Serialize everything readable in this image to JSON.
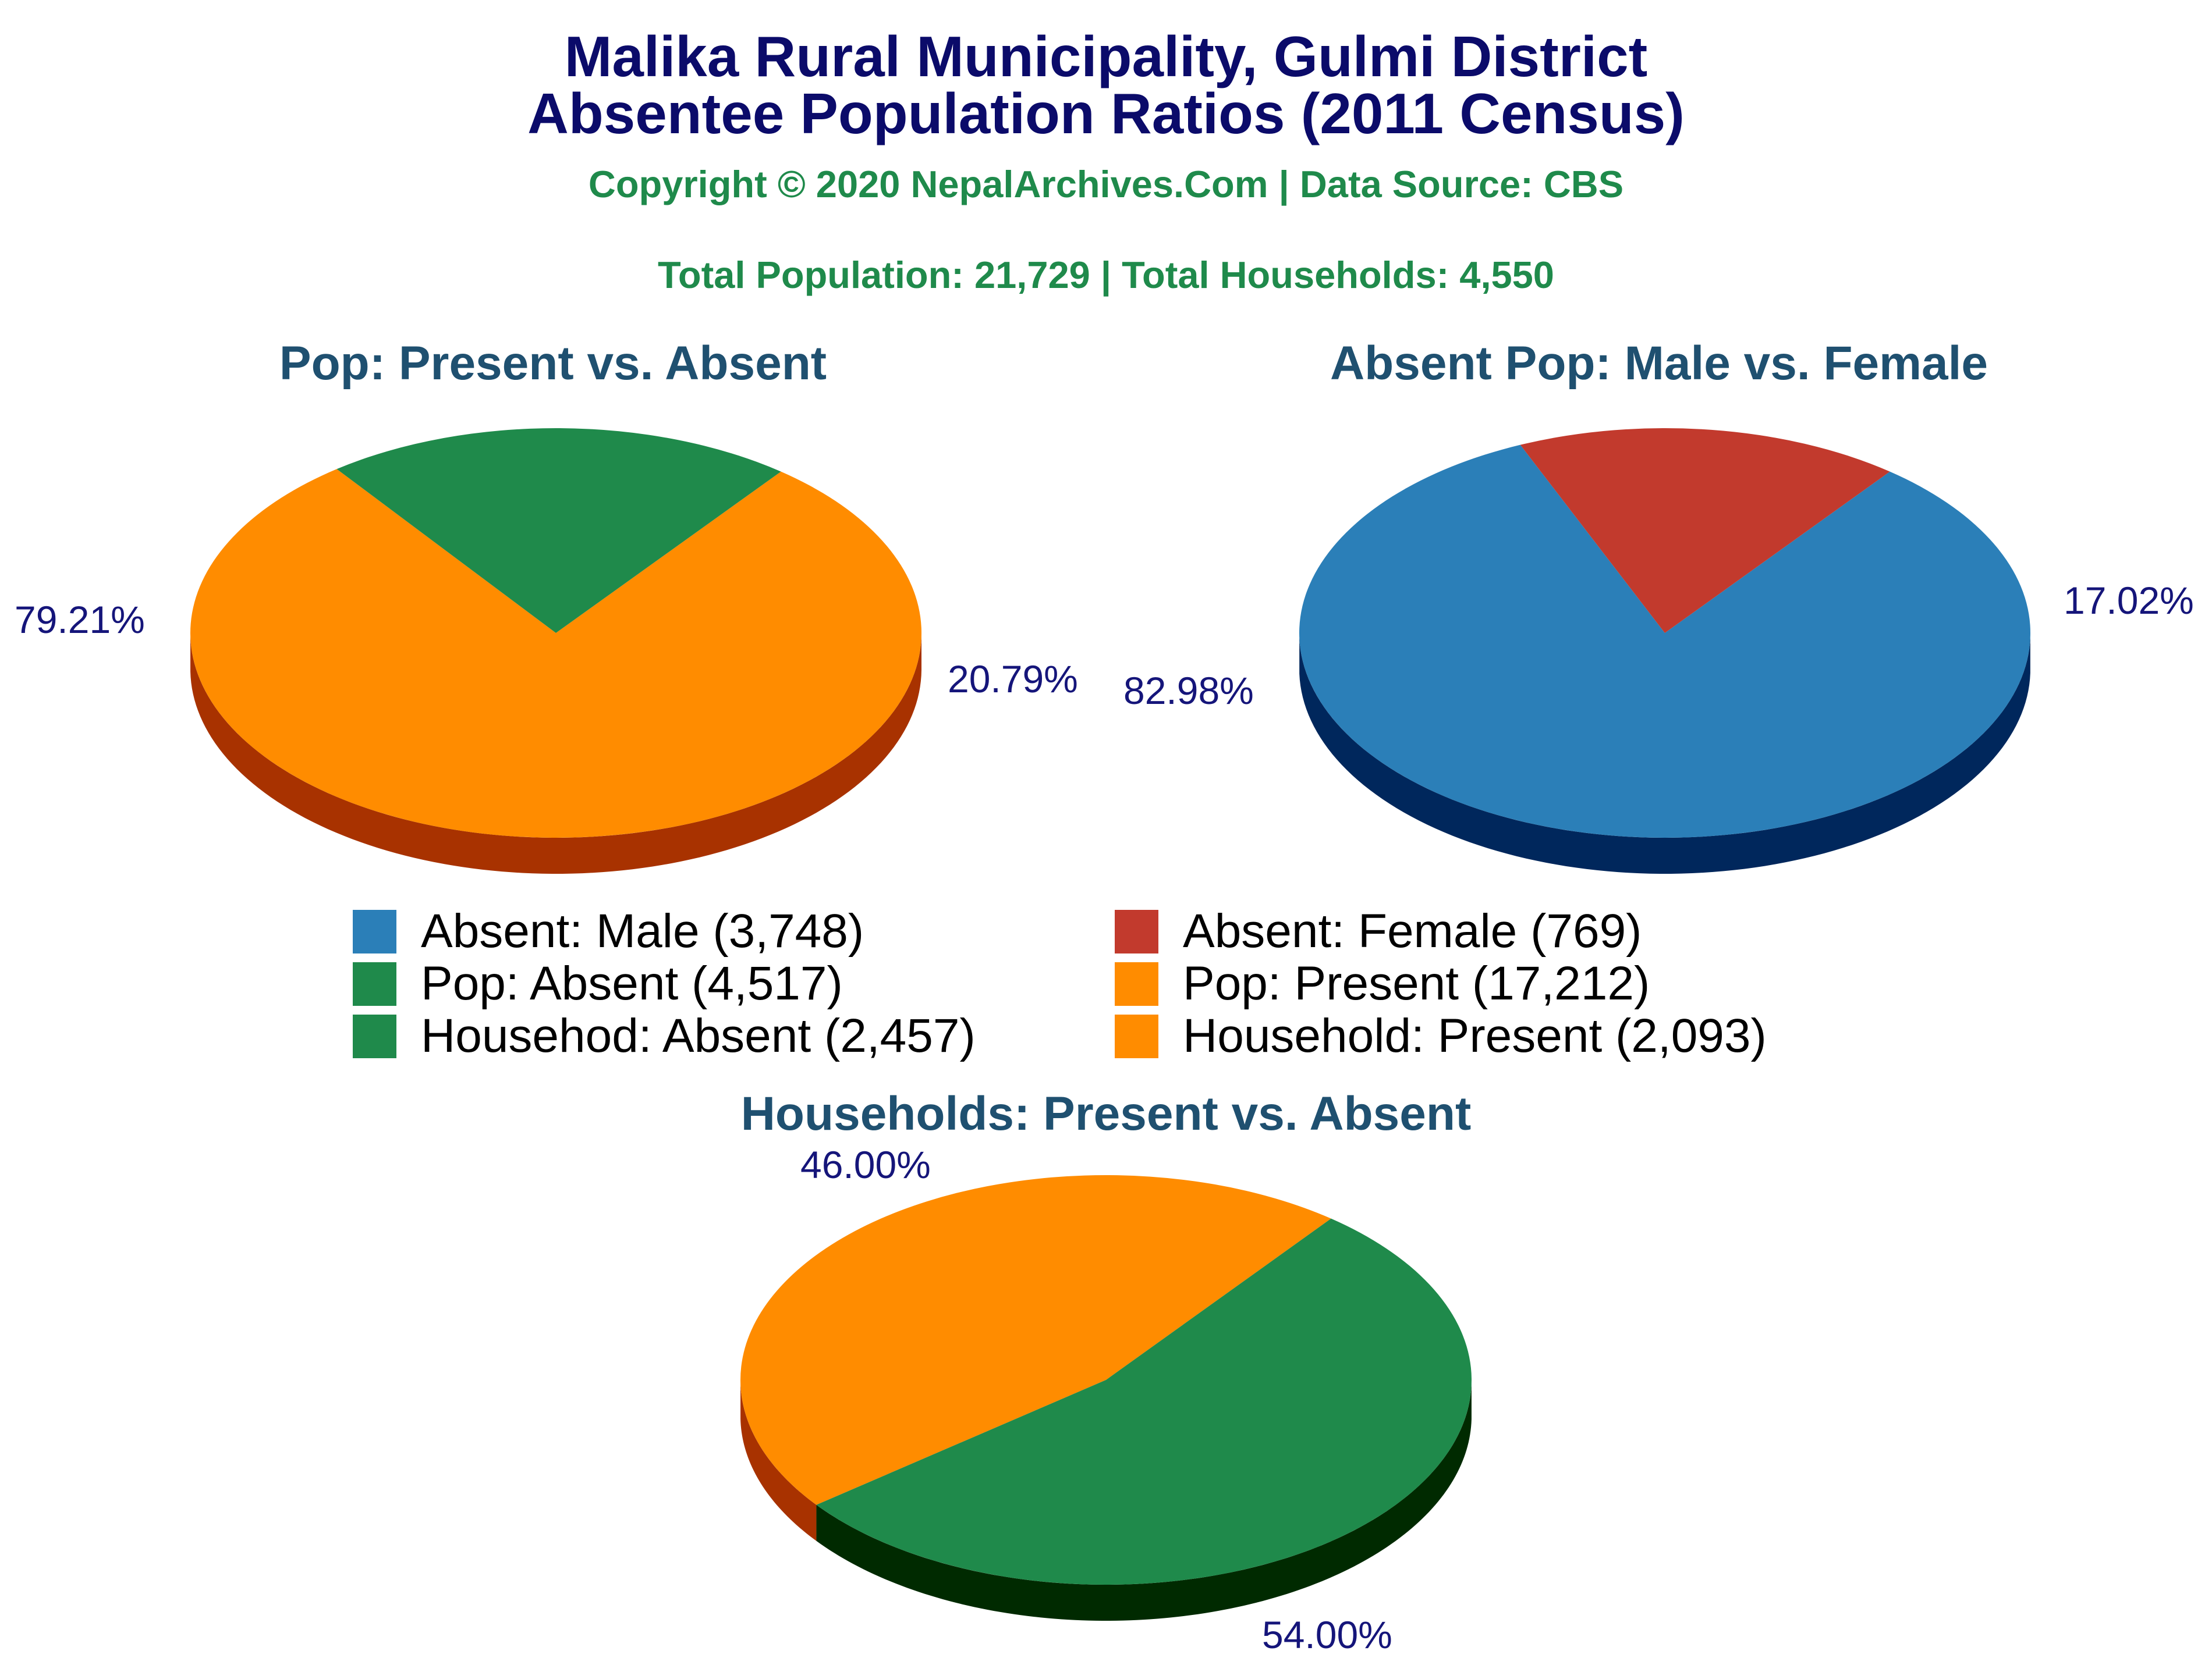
{
  "header": {
    "title_line1": "Malika Rural Municipality, Gulmi District",
    "title_line2": "Absentee Population Ratios (2011 Census)",
    "copyright": "Copyright © 2020 NepalArchives.Com | Data Source: CBS",
    "totals": "Total Population: 21,729 | Total Households: 4,550"
  },
  "colors": {
    "orange": "#ff8c00",
    "orange_side": "#a83200",
    "green": "#1f8a4b",
    "green_side": "#002a00",
    "blue": "#2b7fb8",
    "blue_side": "#00275c",
    "red": "#c23a2d",
    "red_side": "#6b0000"
  },
  "chart_data": [
    {
      "type": "pie",
      "title": "Pop: Present vs. Absent",
      "slices": [
        {
          "label": "Pop: Present (17,212)",
          "value": 17212,
          "percent_label": "79.21%",
          "color": "#ff8c00"
        },
        {
          "label": "Pop: Absent (4,517)",
          "value": 4517,
          "percent_label": "20.79%",
          "color": "#1f8a4b"
        }
      ]
    },
    {
      "type": "pie",
      "title": "Absent Pop: Male vs. Female",
      "slices": [
        {
          "label": "Absent: Male (3,748)",
          "value": 3748,
          "percent_label": "82.98%",
          "color": "#2b7fb8"
        },
        {
          "label": "Absent: Female (769)",
          "value": 769,
          "percent_label": "17.02%",
          "color": "#c23a2d"
        }
      ]
    },
    {
      "type": "pie",
      "title": "Households: Present vs. Absent",
      "slices": [
        {
          "label": "Household: Present (2,093)",
          "value": 2093,
          "percent_label": "46.00%",
          "color": "#ff8c00"
        },
        {
          "label": "Househod: Absent (2,457)",
          "value": 2457,
          "percent_label": "54.00%",
          "color": "#1f8a4b"
        }
      ]
    }
  ],
  "legend": {
    "items": [
      {
        "label": "Absent: Male (3,748)",
        "color": "#2b7fb8"
      },
      {
        "label": "Absent: Female (769)",
        "color": "#c23a2d"
      },
      {
        "label": "Pop: Absent (4,517)",
        "color": "#1f8a4b"
      },
      {
        "label": "Pop: Present (17,212)",
        "color": "#ff8c00"
      },
      {
        "label": "Househod: Absent (2,457)",
        "color": "#1f8a4b"
      },
      {
        "label": "Household: Present (2,093)",
        "color": "#ff8c00"
      }
    ]
  }
}
